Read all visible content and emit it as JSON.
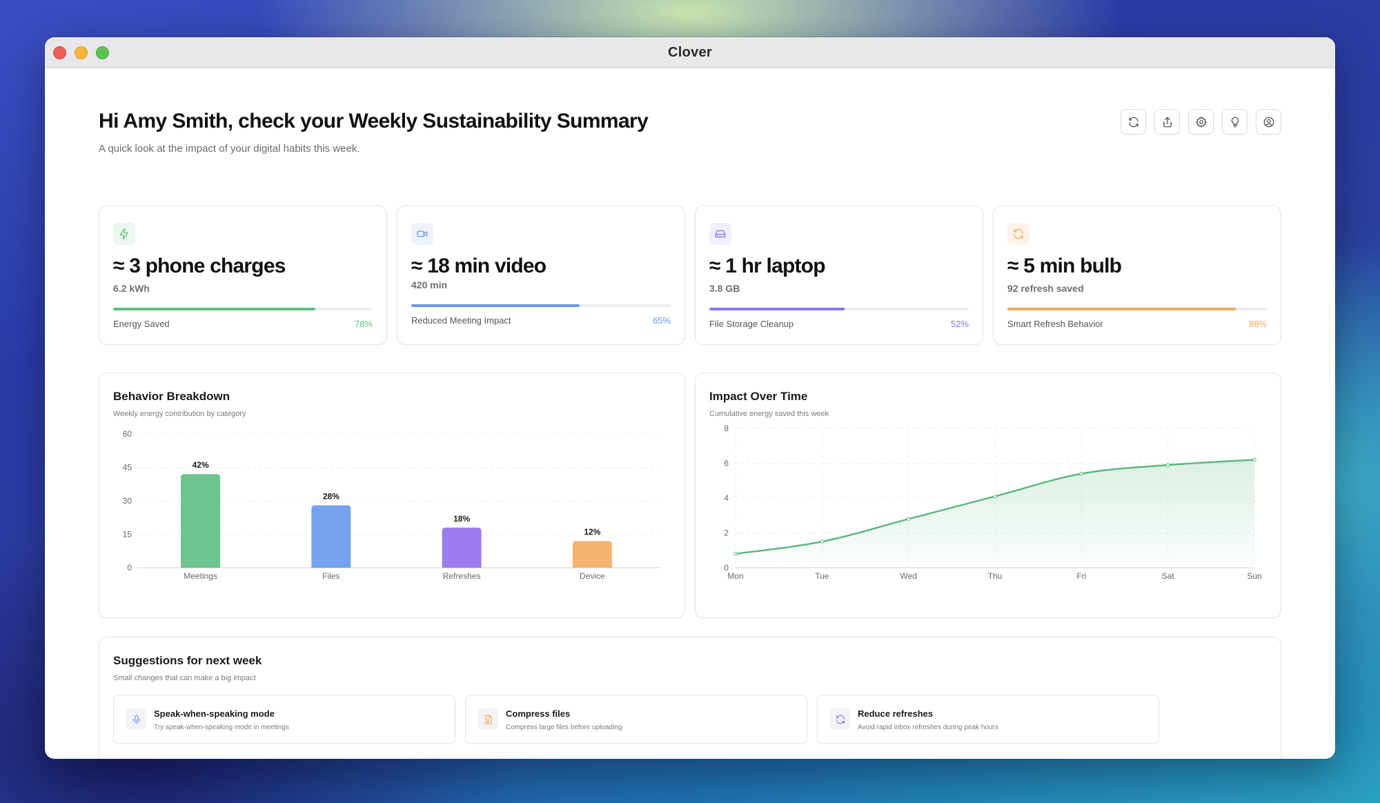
{
  "window": {
    "title": "Clover"
  },
  "header": {
    "greeting": "Hi Amy Smith, check your Weekly Sustainability Summary",
    "subtitle": "A quick look at the impact of your digital habits this week."
  },
  "toolbar": {
    "buttons": [
      {
        "icon": "refresh-icon"
      },
      {
        "icon": "share-icon"
      },
      {
        "icon": "gear-icon"
      },
      {
        "icon": "lightbulb-icon"
      },
      {
        "icon": "user-icon"
      }
    ]
  },
  "stats": [
    {
      "icon": "lightning-icon",
      "value": "≈ 3 phone charges",
      "unit": "6.2 kWh",
      "label": "Energy Saved",
      "percent": "78%",
      "progress": 78,
      "color": "#5bbf7f",
      "icon_bg": "#ebf7ef"
    },
    {
      "icon": "video-camera-icon",
      "value": "≈ 18 min video",
      "unit": "420 min",
      "label": "Reduced Meeting Impact",
      "percent": "65%",
      "progress": 65,
      "color": "#6b95ea",
      "icon_bg": "#eef3fd"
    },
    {
      "icon": "hard-drive-icon",
      "value": "≈ 1 hr laptop",
      "unit": "3.8 GB",
      "label": "File Storage Cleanup",
      "percent": "52%",
      "progress": 52,
      "color": "#8b71ee",
      "icon_bg": "#f1eefd"
    },
    {
      "icon": "refresh-icon",
      "value": "≈ 5 min bulb",
      "unit": "92 refresh saved",
      "label": "Smart Refresh Behavior",
      "percent": "88%",
      "progress": 88,
      "color": "#f2a857",
      "icon_bg": "#fdf3e8"
    }
  ],
  "behavior": {
    "title": "Behavior Breakdown",
    "subtitle": "Weekly energy contribution by category",
    "chart_data": {
      "type": "bar",
      "categories": [
        "Meetings",
        "Files",
        "Refreshes",
        "Device"
      ],
      "values": [
        42,
        28,
        18,
        12
      ],
      "data_labels": [
        "42%",
        "28%",
        "18%",
        "12%"
      ],
      "colors": [
        "#6cc58c",
        "#74a2ee",
        "#9d7cf2",
        "#f4b470"
      ],
      "ylim": [
        0,
        60
      ],
      "yticks": [
        0,
        15,
        30,
        45,
        60
      ],
      "grid": true
    }
  },
  "impact": {
    "title": "Impact Over Time",
    "subtitle": "Cumulative energy saved this week",
    "chart_data": {
      "type": "area",
      "x": [
        "Mon",
        "Tue",
        "Wed",
        "Thu",
        "Fri",
        "Sat",
        "Sun"
      ],
      "values": [
        0.8,
        1.5,
        2.8,
        4.1,
        5.4,
        5.9,
        6.2
      ],
      "color": "#5cb87f",
      "ylim": [
        0,
        8
      ],
      "yticks": [
        0,
        2,
        4,
        6,
        8
      ],
      "grid": true
    }
  },
  "suggestions": {
    "title": "Suggestions for next week",
    "subtitle": "Small changes that can make a big impact",
    "items": [
      {
        "icon": "microphone-icon",
        "title": "Speak-when-speaking mode",
        "desc": "Try speak-when-speaking mode in meetings",
        "color": "#6b95ea"
      },
      {
        "icon": "compress-file-icon",
        "title": "Compress files",
        "desc": "Compress large files before uploading",
        "color": "#f2a857"
      },
      {
        "icon": "refresh-icon",
        "title": "Reduce refreshes",
        "desc": "Avoid rapid inbox refreshes during peak hours",
        "color": "#8b71ee"
      }
    ]
  }
}
